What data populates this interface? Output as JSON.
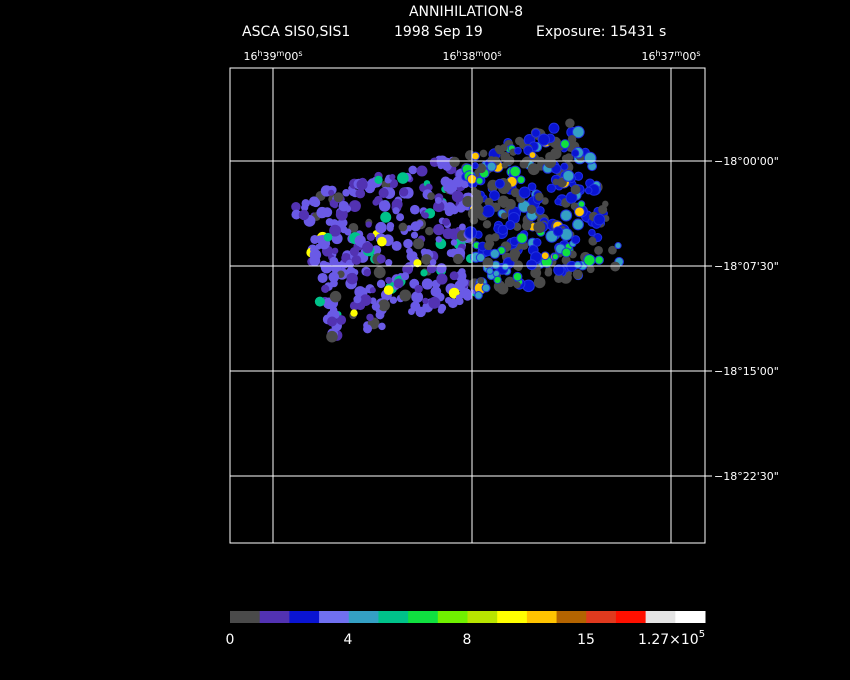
{
  "header": {
    "title": "ANNIHILATION-8",
    "instrument": "ASCA SIS0,SIS1",
    "date": "1998 Sep 19",
    "exposure": "Exposure: 15431 s"
  },
  "ra_labels": [
    [
      "16",
      "h",
      "39",
      "m",
      "00",
      "s"
    ],
    [
      "16",
      "h",
      "38",
      "m",
      "00",
      "s"
    ],
    [
      "16",
      "h",
      "37",
      "m",
      "00",
      "s"
    ]
  ],
  "dec_labels": [
    "−18°00'00\"",
    "−18°07'30\"",
    "−18°15'00\"",
    "−18°22'30\""
  ],
  "colorbar": {
    "colors": [
      "#4a4a4a",
      "#5232b2",
      "#0a14d2",
      "#7070f0",
      "#34a0c4",
      "#00c28a",
      "#10e040",
      "#70f000",
      "#b8e400",
      "#ffff00",
      "#ffc400",
      "#b46400",
      "#e03a1e",
      "#ff1000",
      "#e4e4e4",
      "#ffffff"
    ],
    "labels": [
      "0",
      "4",
      "8",
      "15"
    ],
    "max_label": {
      "mantissa": "1.27×10",
      "exponent": "5"
    }
  }
}
